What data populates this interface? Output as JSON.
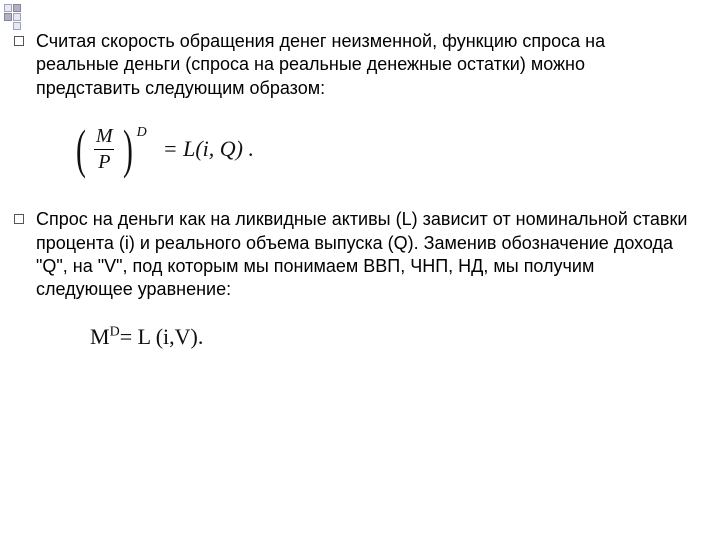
{
  "paragraph1": "Считая скорость обращения денег неизменной, функцию спроса на реальные деньги (спроса на реальные денежные остатки) можно представить следующим образом:",
  "formula1": {
    "numerator": "M",
    "denominator": "P",
    "exponent": "D",
    "rhs": "=  L(i, Q) ."
  },
  "paragraph2": "Спрос на деньги как на ликвидные активы (L) зависит от номинальной ставки процента (i) и реального объема выпуска (Q). Заменив обозначение дохода \"Q\", на \"V\", под которым мы понимаем ВВП, ЧНП, НД, мы получим следующее уравнение:",
  "formula2": {
    "base": "M",
    "sup": "D",
    "rest": "= L (i,V)."
  },
  "style": {
    "body_fontsize": 18,
    "formula_fontsize": 22,
    "text_color": "#000000",
    "background": "#ffffff",
    "deco_light": "#e8e8f0",
    "deco_dark": "#b0b0c8"
  }
}
